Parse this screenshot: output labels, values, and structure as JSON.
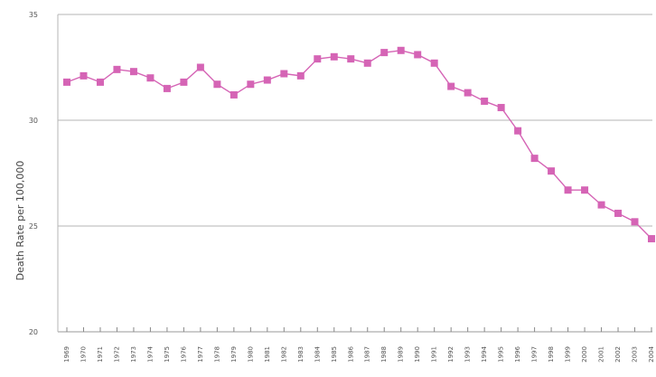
{
  "chart_data": {
    "type": "line",
    "title": "",
    "xlabel": "",
    "ylabel": "Death Rate per 100,000",
    "ylim": [
      20,
      35
    ],
    "yticks": [
      "20",
      "25",
      "30",
      "35"
    ],
    "grid": "horizontal",
    "categories": [
      "1969",
      "1970",
      "1971",
      "1972",
      "1973",
      "1974",
      "1975",
      "1976",
      "1977",
      "1978",
      "1979",
      "1980",
      "1981",
      "1982",
      "1983",
      "1984",
      "1985",
      "1986",
      "1987",
      "1988",
      "1989",
      "1990",
      "1991",
      "1992",
      "1993",
      "1994",
      "1995",
      "1996",
      "1997",
      "1998",
      "1999",
      "2000",
      "2001",
      "2002",
      "2003",
      "2004"
    ],
    "series": [
      {
        "color": "#d564b5",
        "marker": "square",
        "values": [
          31.8,
          32.1,
          31.8,
          32.4,
          32.3,
          32.0,
          31.5,
          31.8,
          32.5,
          31.7,
          31.2,
          31.7,
          31.9,
          32.2,
          32.1,
          32.9,
          33.0,
          32.9,
          32.7,
          33.2,
          33.3,
          33.1,
          32.7,
          31.6,
          31.3,
          30.9,
          30.6,
          29.5,
          28.2,
          27.6,
          26.7,
          26.7,
          26.0,
          25.6,
          25.2,
          24.4
        ]
      }
    ]
  }
}
